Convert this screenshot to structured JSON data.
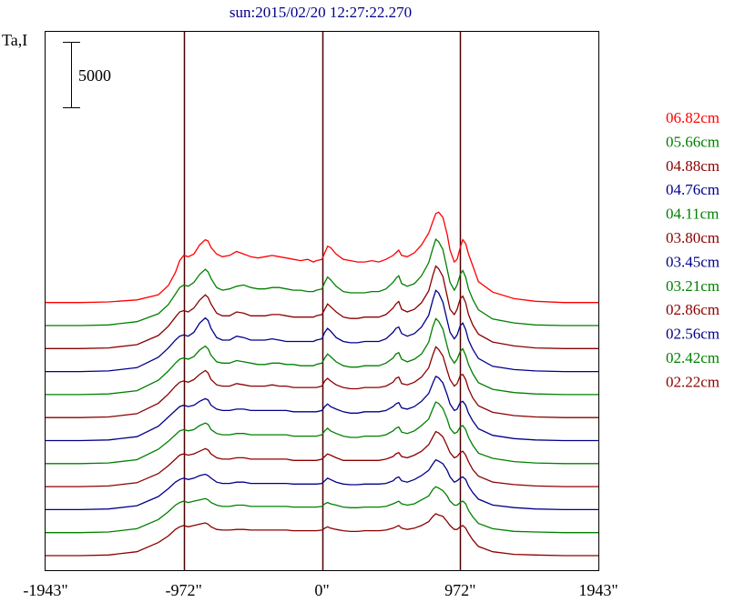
{
  "chart_data": {
    "type": "line",
    "title": "sun:2015/02/20 12:27:22.270",
    "ylabel": "Ta,I",
    "scale_bar_label": "5000",
    "xlim": [
      -1943,
      1943
    ],
    "x_ticks": [
      -1943,
      -972,
      0,
      972,
      1943
    ],
    "x_tick_labels": [
      "-1943\"",
      "-972\"",
      "0\"",
      "972\"",
      "1943\""
    ],
    "limb_markers": [
      -972,
      0,
      972
    ],
    "offset_step": 2500,
    "grid": false,
    "legend_position": "right",
    "profile_x": [
      -1943,
      -1700,
      -1500,
      -1300,
      -1150,
      -1080,
      -1030,
      -1000,
      -972,
      -940,
      -900,
      -860,
      -820,
      -800,
      -780,
      -740,
      -700,
      -650,
      -600,
      -550,
      -500,
      -450,
      -400,
      -350,
      -300,
      -250,
      -200,
      -150,
      -100,
      -60,
      -40,
      0,
      20,
      40,
      60,
      100,
      150,
      200,
      250,
      300,
      350,
      400,
      450,
      500,
      520,
      540,
      560,
      600,
      650,
      700,
      750,
      780,
      800,
      820,
      850,
      880,
      900,
      930,
      950,
      972,
      990,
      1010,
      1030,
      1060,
      1100,
      1200,
      1350,
      1500,
      1700,
      1943
    ],
    "series": [
      {
        "name": "06.82cm",
        "color": "#ff0000",
        "values": [
          0,
          0,
          50,
          200,
          600,
          1300,
          2300,
          3200,
          3600,
          3500,
          3700,
          4400,
          4800,
          4700,
          4200,
          3700,
          3500,
          3600,
          3900,
          3700,
          3500,
          3400,
          3500,
          3600,
          3500,
          3400,
          3300,
          3200,
          3300,
          3100,
          3200,
          3300,
          3800,
          4300,
          4200,
          3700,
          3300,
          3200,
          3100,
          3100,
          3200,
          3100,
          3300,
          3600,
          3800,
          4000,
          3600,
          3500,
          3800,
          4400,
          5300,
          6200,
          6800,
          6900,
          6500,
          5200,
          4000,
          3100,
          3300,
          4200,
          4800,
          4500,
          3700,
          2800,
          1600,
          800,
          300,
          100,
          0,
          0
        ]
      },
      {
        "name": "05.66cm",
        "color": "#008000",
        "values": [
          0,
          0,
          50,
          300,
          900,
          1600,
          2400,
          2900,
          3100,
          3000,
          3300,
          3900,
          4300,
          4100,
          3600,
          2900,
          2700,
          2800,
          3000,
          3100,
          2900,
          2800,
          2800,
          2900,
          2900,
          2800,
          2700,
          2700,
          2600,
          2600,
          2700,
          2800,
          3300,
          3700,
          3500,
          3000,
          2600,
          2500,
          2500,
          2500,
          2600,
          2600,
          2800,
          3300,
          3600,
          3800,
          3200,
          3000,
          3200,
          3800,
          4800,
          5900,
          6600,
          6400,
          5800,
          4300,
          3300,
          2700,
          3100,
          3900,
          4200,
          3700,
          2800,
          2000,
          1200,
          500,
          200,
          50,
          0,
          0
        ]
      },
      {
        "name": "04.88cm",
        "color": "#8b0000",
        "values": [
          0,
          0,
          50,
          300,
          1000,
          1700,
          2400,
          2800,
          2900,
          2800,
          3100,
          3700,
          4100,
          3900,
          3400,
          2700,
          2500,
          2500,
          2800,
          2700,
          2500,
          2500,
          2500,
          2600,
          2600,
          2500,
          2400,
          2400,
          2400,
          2400,
          2500,
          2600,
          3000,
          3400,
          3200,
          2800,
          2400,
          2300,
          2300,
          2400,
          2400,
          2400,
          2600,
          3100,
          3400,
          3600,
          3000,
          2800,
          3000,
          3500,
          4400,
          5600,
          6300,
          6100,
          5500,
          4000,
          3000,
          2600,
          3000,
          3800,
          4000,
          3500,
          2600,
          1800,
          1100,
          500,
          200,
          50,
          0,
          0
        ]
      },
      {
        "name": "04.76cm",
        "color": "#00008b",
        "values": [
          0,
          0,
          50,
          300,
          1100,
          1800,
          2400,
          2700,
          2800,
          2700,
          3000,
          3700,
          4100,
          3900,
          3300,
          2600,
          2400,
          2400,
          2700,
          2600,
          2400,
          2400,
          2400,
          2500,
          2400,
          2300,
          2300,
          2300,
          2300,
          2300,
          2400,
          2500,
          3000,
          3300,
          3100,
          2600,
          2300,
          2200,
          2200,
          2300,
          2300,
          2300,
          2500,
          3000,
          3300,
          3400,
          2900,
          2700,
          2900,
          3400,
          4300,
          5500,
          6200,
          6000,
          5300,
          3900,
          3000,
          2500,
          2800,
          3500,
          3700,
          3200,
          2400,
          1700,
          1000,
          400,
          150,
          50,
          0,
          0
        ]
      },
      {
        "name": "04.11cm",
        "color": "#008000",
        "values": [
          0,
          0,
          50,
          300,
          1100,
          1800,
          2400,
          2700,
          2800,
          2700,
          2900,
          3400,
          3700,
          3500,
          3000,
          2500,
          2400,
          2400,
          2600,
          2500,
          2400,
          2300,
          2300,
          2400,
          2400,
          2300,
          2300,
          2200,
          2200,
          2200,
          2300,
          2400,
          2800,
          3100,
          2900,
          2500,
          2200,
          2100,
          2100,
          2200,
          2200,
          2200,
          2400,
          2800,
          3100,
          3200,
          2700,
          2500,
          2700,
          3100,
          4000,
          5200,
          5800,
          5600,
          5000,
          3700,
          2900,
          2400,
          2700,
          3300,
          3500,
          3000,
          2300,
          1600,
          900,
          400,
          150,
          50,
          0,
          0
        ]
      },
      {
        "name": "03.80cm",
        "color": "#8b0000",
        "values": [
          0,
          0,
          50,
          300,
          1100,
          1800,
          2400,
          2700,
          2800,
          2700,
          2900,
          3300,
          3600,
          3400,
          2900,
          2500,
          2400,
          2400,
          2600,
          2500,
          2400,
          2400,
          2400,
          2500,
          2400,
          2400,
          2300,
          2300,
          2300,
          2300,
          2300,
          2400,
          2800,
          3000,
          2800,
          2500,
          2300,
          2200,
          2200,
          2300,
          2300,
          2300,
          2400,
          2700,
          3000,
          3100,
          2600,
          2500,
          2700,
          3100,
          3800,
          4800,
          5400,
          5200,
          4700,
          3600,
          2900,
          2400,
          2600,
          3200,
          3300,
          2900,
          2200,
          1500,
          900,
          400,
          150,
          50,
          0,
          0
        ]
      },
      {
        "name": "03.45cm",
        "color": "#00008b",
        "values": [
          0,
          0,
          50,
          300,
          1100,
          1800,
          2300,
          2600,
          2700,
          2600,
          2700,
          3000,
          3200,
          3100,
          2700,
          2400,
          2300,
          2300,
          2400,
          2400,
          2300,
          2300,
          2300,
          2300,
          2300,
          2300,
          2200,
          2200,
          2200,
          2200,
          2200,
          2300,
          2600,
          2800,
          2600,
          2400,
          2200,
          2100,
          2100,
          2200,
          2200,
          2200,
          2300,
          2600,
          2800,
          2900,
          2500,
          2400,
          2600,
          3000,
          3600,
          4400,
          4900,
          4800,
          4400,
          3500,
          2800,
          2300,
          2400,
          2900,
          3000,
          2700,
          2100,
          1500,
          900,
          400,
          150,
          50,
          0,
          0
        ]
      },
      {
        "name": "03.21cm",
        "color": "#008000",
        "values": [
          0,
          0,
          50,
          300,
          1100,
          1700,
          2200,
          2500,
          2600,
          2500,
          2600,
          2900,
          3100,
          3000,
          2600,
          2300,
          2200,
          2200,
          2300,
          2300,
          2200,
          2200,
          2200,
          2200,
          2200,
          2200,
          2100,
          2100,
          2100,
          2100,
          2100,
          2200,
          2500,
          2700,
          2500,
          2300,
          2100,
          2000,
          2000,
          2100,
          2100,
          2100,
          2200,
          2500,
          2700,
          2800,
          2400,
          2300,
          2500,
          2900,
          3400,
          4200,
          4700,
          4600,
          4200,
          3400,
          2700,
          2300,
          2400,
          2800,
          2900,
          2600,
          2000,
          1400,
          800,
          400,
          150,
          50,
          0,
          0
        ]
      },
      {
        "name": "02.86cm",
        "color": "#8b0000",
        "values": [
          0,
          0,
          50,
          300,
          1000,
          1600,
          2100,
          2400,
          2500,
          2400,
          2500,
          2700,
          2900,
          2800,
          2500,
          2200,
          2100,
          2100,
          2200,
          2200,
          2100,
          2100,
          2100,
          2100,
          2100,
          2100,
          2000,
          2000,
          2000,
          2000,
          2000,
          2100,
          2300,
          2500,
          2400,
          2200,
          2000,
          2000,
          2000,
          2000,
          2000,
          2000,
          2100,
          2300,
          2500,
          2600,
          2300,
          2200,
          2400,
          2700,
          3200,
          3800,
          4200,
          4100,
          3800,
          3100,
          2600,
          2200,
          2300,
          2600,
          2700,
          2400,
          1900,
          1300,
          800,
          350,
          150,
          50,
          0,
          0
        ]
      },
      {
        "name": "02.56cm",
        "color": "#00008b",
        "values": [
          0,
          0,
          50,
          300,
          1000,
          1600,
          2100,
          2300,
          2400,
          2300,
          2400,
          2600,
          2700,
          2600,
          2400,
          2100,
          2000,
          2000,
          2100,
          2100,
          2000,
          2000,
          2000,
          2000,
          2000,
          2000,
          1950,
          1950,
          1950,
          1950,
          1950,
          2000,
          2200,
          2400,
          2300,
          2100,
          1950,
          1900,
          1900,
          1950,
          1950,
          1950,
          2000,
          2200,
          2400,
          2500,
          2200,
          2100,
          2300,
          2600,
          3000,
          3500,
          3800,
          3700,
          3500,
          3000,
          2500,
          2100,
          2200,
          2400,
          2500,
          2300,
          1800,
          1300,
          800,
          350,
          150,
          50,
          0,
          0
        ]
      },
      {
        "name": "02.42cm",
        "color": "#008000",
        "values": [
          0,
          0,
          50,
          300,
          1000,
          1600,
          2100,
          2300,
          2400,
          2300,
          2400,
          2500,
          2600,
          2500,
          2300,
          2100,
          2000,
          2000,
          2100,
          2100,
          2000,
          2000,
          2000,
          2000,
          2000,
          2000,
          1950,
          1950,
          1950,
          1950,
          1950,
          2000,
          2200,
          2300,
          2200,
          2100,
          1950,
          1900,
          1900,
          1950,
          1950,
          1950,
          2000,
          2200,
          2300,
          2400,
          2200,
          2100,
          2200,
          2500,
          2800,
          3300,
          3500,
          3400,
          3200,
          2800,
          2400,
          2100,
          2100,
          2300,
          2400,
          2200,
          1700,
          1200,
          700,
          300,
          100,
          50,
          0,
          0
        ]
      },
      {
        "name": "02.22cm",
        "color": "#8b0000",
        "values": [
          0,
          0,
          50,
          300,
          1000,
          1500,
          2000,
          2200,
          2300,
          2200,
          2300,
          2400,
          2500,
          2400,
          2200,
          2000,
          1950,
          1950,
          2000,
          2000,
          1950,
          1950,
          1950,
          1950,
          1950,
          1950,
          1900,
          1900,
          1900,
          1900,
          1900,
          1950,
          2100,
          2200,
          2100,
          2000,
          1900,
          1850,
          1850,
          1900,
          1900,
          1900,
          1950,
          2100,
          2200,
          2300,
          2100,
          2000,
          2100,
          2300,
          2600,
          3000,
          3200,
          3100,
          3000,
          2600,
          2300,
          2000,
          2000,
          2200,
          2300,
          2100,
          1700,
          1200,
          700,
          300,
          100,
          50,
          0,
          0
        ]
      }
    ]
  }
}
